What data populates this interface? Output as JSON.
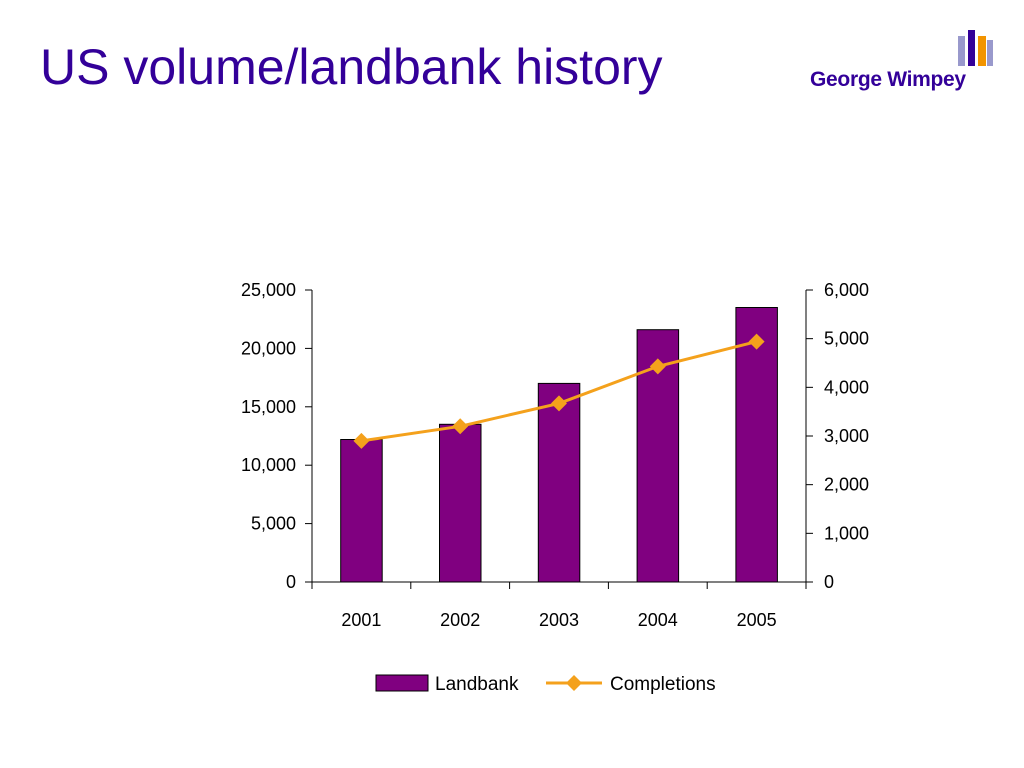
{
  "slide": {
    "title": "US volume/landbank history"
  },
  "logo": {
    "text": "George Wimpey",
    "colors": {
      "purple": "#330099",
      "orange": "#F29400",
      "lilac": "#9999CC"
    }
  },
  "chart_data": {
    "type": "bar",
    "title": "",
    "xlabel": "",
    "ylabel": "",
    "categories": [
      "2001",
      "2002",
      "2003",
      "2004",
      "2005"
    ],
    "series": [
      {
        "name": "Landbank",
        "type": "bar",
        "axis": "left",
        "color": "#800080",
        "values": [
          12200,
          13500,
          17000,
          21600,
          23500
        ]
      },
      {
        "name": "Completions",
        "type": "line",
        "marker": "diamond",
        "axis": "right",
        "color": "#F4A11C",
        "values": [
          2900,
          3200,
          3670,
          4430,
          4940
        ]
      }
    ],
    "y_left": {
      "min": 0,
      "max": 25000,
      "ticks": [
        0,
        5000,
        10000,
        15000,
        20000,
        25000
      ],
      "tick_labels": [
        "0",
        "5,000",
        "10,000",
        "15,000",
        "20,000",
        "25,000"
      ]
    },
    "y_right": {
      "min": 0,
      "max": 6000,
      "ticks": [
        0,
        1000,
        2000,
        3000,
        4000,
        5000,
        6000
      ],
      "tick_labels": [
        "0",
        "1,000",
        "2,000",
        "3,000",
        "4,000",
        "5,000",
        "6,000"
      ]
    },
    "grid": false,
    "legend": "bottom"
  }
}
